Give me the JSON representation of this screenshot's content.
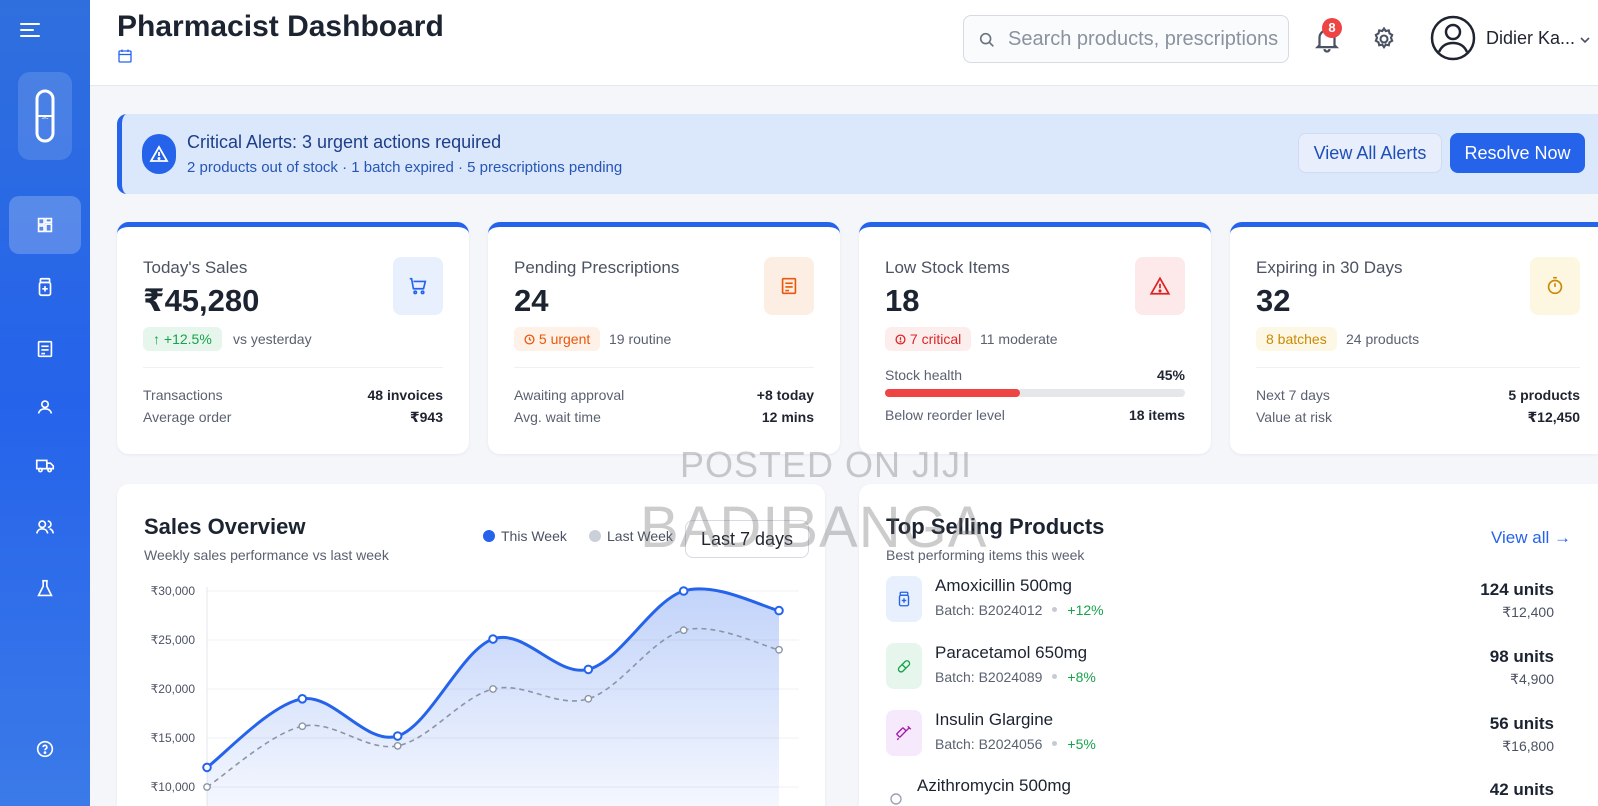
{
  "header": {
    "title": "Pharmacist Dashboard",
    "search_placeholder": "Search products, prescriptions...",
    "notifications_count": "8",
    "user_name": "Didier Ka..."
  },
  "sidebar": {
    "items": [
      {
        "icon": "dashboard-icon",
        "active": true
      },
      {
        "icon": "medicine-bottle-icon",
        "active": false
      },
      {
        "icon": "prescription-icon",
        "active": false
      },
      {
        "icon": "patient-icon",
        "active": false
      },
      {
        "icon": "truck-icon",
        "active": false
      },
      {
        "icon": "users-icon",
        "active": false
      },
      {
        "icon": "flask-icon",
        "active": false
      },
      {
        "icon": "help-icon",
        "active": false
      }
    ]
  },
  "alert": {
    "title": "Critical Alerts: 3 urgent actions required",
    "subtitle": "2 products out of stock · 1 batch expired · 5 prescriptions pending",
    "view_all_label": "View All Alerts",
    "resolve_label": "Resolve Now"
  },
  "cards": {
    "sales": {
      "label": "Today's Sales",
      "value": "₹45,280",
      "chip": "↑ +12.5%",
      "note": "vs yesterday",
      "rows": [
        {
          "label": "Transactions",
          "value": "48 invoices"
        },
        {
          "label": "Average order",
          "value": "₹943"
        }
      ]
    },
    "prescriptions": {
      "label": "Pending Prescriptions",
      "value": "24",
      "chip": "5 urgent",
      "note": "19 routine",
      "rows": [
        {
          "label": "Awaiting approval",
          "value": "+8 today"
        },
        {
          "label": "Avg. wait time",
          "value": "12 mins"
        }
      ]
    },
    "low_stock": {
      "label": "Low Stock Items",
      "value": "18",
      "chip": "7 critical",
      "note": "11 moderate",
      "health_label": "Stock health",
      "health_value": "45%",
      "health_fraction": 0.45,
      "rows": [
        {
          "label": "Below reorder level",
          "value": "18 items"
        }
      ]
    },
    "expiring": {
      "label": "Expiring in 30 Days",
      "value": "32",
      "chip": "8 batches",
      "note": "24 products",
      "rows": [
        {
          "label": "Next 7 days",
          "value": "5 products"
        },
        {
          "label": "Value at risk",
          "value": "₹12,450"
        }
      ]
    }
  },
  "sales_overview": {
    "title": "Sales Overview",
    "subtitle": "Weekly sales performance vs last week",
    "legend_this": "This Week",
    "legend_last": "Last Week",
    "range": "Last 7 days"
  },
  "chart_data": {
    "type": "area",
    "y_ticks": [
      "₹30,000",
      "₹25,000",
      "₹20,000",
      "₹15,000",
      "₹10,000"
    ],
    "ylim": [
      10000,
      30000
    ],
    "series": [
      {
        "name": "This Week",
        "values": [
          12000,
          19000,
          15200,
          25100,
          22000,
          30000,
          28000
        ],
        "color": "#2563eb"
      },
      {
        "name": "Last Week",
        "values": [
          10000,
          16200,
          14200,
          20000,
          19000,
          26000,
          24000
        ],
        "color": "#94a3b8"
      }
    ]
  },
  "top_selling": {
    "title": "Top Selling Products",
    "subtitle": "Best performing items this week",
    "view_all": "View all →",
    "products": [
      {
        "name": "Amoxicillin 500mg",
        "batch": "Batch: B2024012",
        "trend": "+12%",
        "units": "124 units",
        "revenue": "₹12,400"
      },
      {
        "name": "Paracetamol 650mg",
        "batch": "Batch: B2024089",
        "trend": "+8%",
        "units": "98 units",
        "revenue": "₹4,900"
      },
      {
        "name": "Insulin Glargine",
        "batch": "Batch: B2024056",
        "trend": "+5%",
        "units": "56 units",
        "revenue": "₹16,800"
      },
      {
        "name": "Azithromycin 500mg",
        "batch": "",
        "trend": "",
        "units": "42 units",
        "revenue": ""
      }
    ]
  },
  "watermark": {
    "line1": "POSTED ON JIJI",
    "line2": "BADIBANGA"
  },
  "colors": {
    "primary": "#2563eb",
    "danger": "#ef4444",
    "warning": "#f97316",
    "amber": "#eab308",
    "success": "#16a34a"
  }
}
